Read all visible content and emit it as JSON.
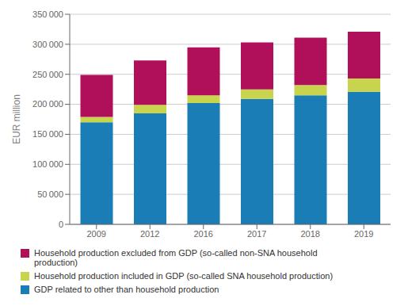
{
  "chart_data": {
    "type": "bar",
    "stacked": true,
    "grid": true,
    "legend": "bottom",
    "categories": [
      "2009",
      "2012",
      "2016",
      "2017",
      "2018",
      "2019"
    ],
    "series": [
      {
        "name": "GDP related to other than household production",
        "color": "#1a7db5",
        "values": [
          170000,
          185000,
          202000,
          209000,
          215000,
          221000
        ]
      },
      {
        "name": "Household production included in GDP (so-called SNA household production)",
        "color": "#c8d44e",
        "values": [
          9000,
          14000,
          13000,
          16000,
          17000,
          22000
        ]
      },
      {
        "name": "Household production excluded from GDP (so-called non-SNA household\nproduction)",
        "color": "#b0105a",
        "values": [
          70000,
          74000,
          80000,
          78000,
          79000,
          78000
        ]
      }
    ],
    "ylabel": "EUR million",
    "ylim": [
      0,
      350000
    ],
    "yticks": [
      0,
      {
        "value": 50000,
        "label": "50 000"
      },
      {
        "value": 100000,
        "label": "100 000"
      },
      {
        "value": 150000,
        "label": "150 000"
      },
      {
        "value": 200000,
        "label": "200 000"
      },
      {
        "value": 250000,
        "label": "250 000"
      },
      {
        "value": 300000,
        "label": "300 000"
      },
      {
        "value": 350000,
        "label": "350 000"
      }
    ]
  }
}
